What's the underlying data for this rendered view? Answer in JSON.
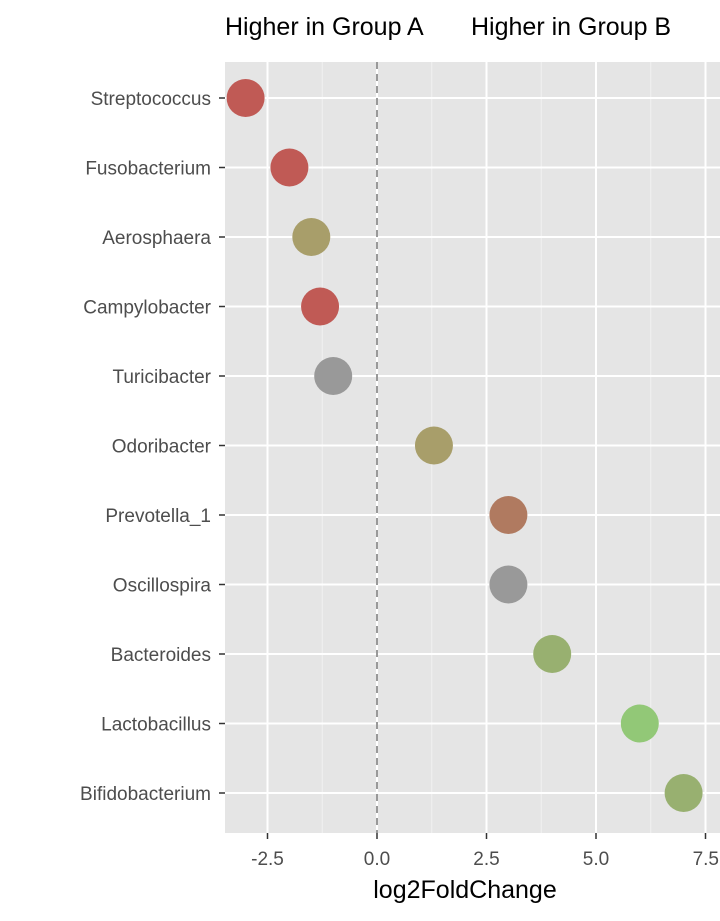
{
  "chart_data": {
    "type": "scatter",
    "title_left": "Higher in Group A",
    "title_right": "Higher in Group B",
    "xlabel": "log2FoldChange",
    "ylabel": "",
    "xlim": [
      -3.5,
      7.5
    ],
    "x_ticks": [
      -2.5,
      0.0,
      2.5,
      5.0,
      7.5
    ],
    "x_tick_labels": [
      "-2.5",
      "0.0",
      "2.5",
      "5.0",
      "7.5"
    ],
    "reference_line": {
      "x": 0,
      "style": "dashed",
      "color": "#999999"
    },
    "grid": true,
    "panel_background": "#e5e5e5",
    "categories": [
      "Streptococcus",
      "Fusobacterium",
      "Aerosphaera",
      "Campylobacter",
      "Turicibacter",
      "Odoribacter",
      "Prevotella_1",
      "Oscillospira",
      "Bacteroides",
      "Lactobacillus",
      "Bifidobacterium"
    ],
    "points": [
      {
        "label": "Streptococcus",
        "x": -3.0,
        "color": "#c05a55"
      },
      {
        "label": "Fusobacterium",
        "x": -2.0,
        "color": "#c05a55"
      },
      {
        "label": "Aerosphaera",
        "x": -1.5,
        "color": "#a89e6a"
      },
      {
        "label": "Campylobacter",
        "x": -1.3,
        "color": "#c05a55"
      },
      {
        "label": "Turicibacter",
        "x": -1.0,
        "color": "#999999"
      },
      {
        "label": "Odoribacter",
        "x": 1.3,
        "color": "#a89e6a"
      },
      {
        "label": "Prevotella_1",
        "x": 3.0,
        "color": "#b07a60"
      },
      {
        "label": "Oscillospira",
        "x": 3.0,
        "color": "#999999"
      },
      {
        "label": "Bacteroides",
        "x": 4.0,
        "color": "#98b070"
      },
      {
        "label": "Lactobacillus",
        "x": 6.0,
        "color": "#92c877"
      },
      {
        "label": "Bifidobacterium",
        "x": 7.0,
        "color": "#98b070"
      }
    ]
  }
}
